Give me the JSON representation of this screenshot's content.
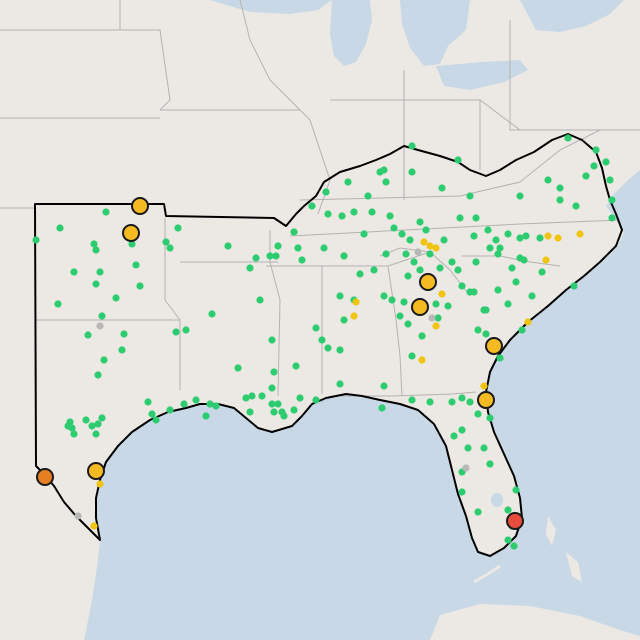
{
  "map": {
    "colors": {
      "land": "#ece9e4",
      "water": "#c8d8e6",
      "state_border": "#b3b3b3",
      "region_outline": "#000000",
      "green": "#2ecc71",
      "yellow": "#f1c40f",
      "gold": "#f5b921",
      "orange": "#e67e22",
      "red": "#e74c3c",
      "gray": "#b8b8b8"
    },
    "legend": {
      "small_green": "green",
      "small_yellow": "yellow",
      "small_gray": "gray",
      "large_gold": "gold",
      "large_orange": "orange",
      "large_red": "red"
    }
  }
}
